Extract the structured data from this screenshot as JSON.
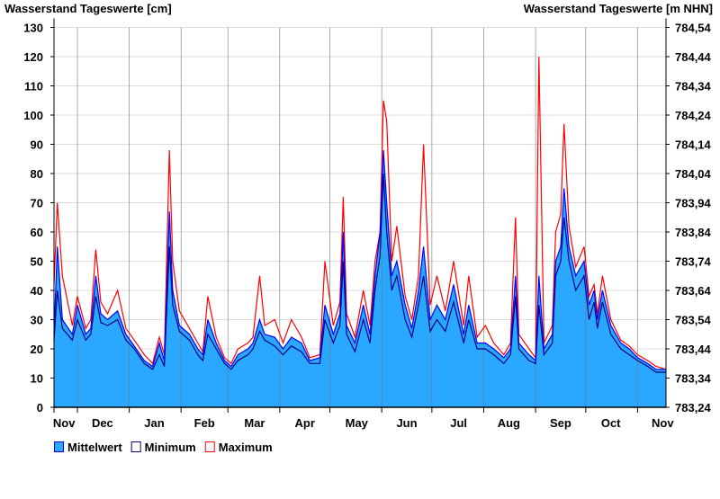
{
  "chart_data": {
    "type": "area",
    "title_left": "Wasserstand Tageswerte [cm]",
    "title_right": "Wasserstand Tageswerte [m NHN]",
    "ylim": [
      0,
      130
    ],
    "yticks": [
      0,
      10,
      20,
      30,
      40,
      50,
      60,
      70,
      80,
      90,
      100,
      110,
      120,
      130
    ],
    "yticks_right": [
      "783,24",
      "783,34",
      "783,44",
      "783,54",
      "783,64",
      "783,74",
      "783,84",
      "783,94",
      "784,04",
      "784,14",
      "784,24",
      "784,34",
      "784,44",
      "784,54"
    ],
    "xlim_days": [
      0,
      366
    ],
    "month_boundaries_days": [
      14,
      45,
      76,
      104,
      135,
      165,
      196,
      226,
      257,
      288,
      318,
      349
    ],
    "month_labels": [
      {
        "label": "Nov",
        "day": 6
      },
      {
        "label": "Dec",
        "day": 29
      },
      {
        "label": "Jan",
        "day": 60
      },
      {
        "label": "Feb",
        "day": 90
      },
      {
        "label": "Mar",
        "day": 120
      },
      {
        "label": "Apr",
        "day": 150
      },
      {
        "label": "May",
        "day": 181
      },
      {
        "label": "Jun",
        "day": 211
      },
      {
        "label": "Jul",
        "day": 242
      },
      {
        "label": "Aug",
        "day": 272
      },
      {
        "label": "Sep",
        "day": 303
      },
      {
        "label": "Oct",
        "day": 333
      },
      {
        "label": "Nov",
        "day": 364
      }
    ],
    "legend": [
      {
        "label": "Mittelwert",
        "color": "#2aa8ff",
        "border": "#0000ff"
      },
      {
        "label": "Minimum",
        "color": "#ffffff",
        "border": "#000080"
      },
      {
        "label": "Maximum",
        "color": "#ffffff",
        "border": "#ff0000"
      }
    ],
    "colors": {
      "fill": "#2aa8ff",
      "mean": "#0000ff",
      "min": "#000080",
      "max": "#ff0000",
      "grid": "#dddddd",
      "month_line": "#1f5f8a"
    },
    "series_columns": [
      "day",
      "min",
      "mean",
      "max"
    ],
    "points": [
      [
        0,
        23,
        25,
        42
      ],
      [
        2,
        40,
        55,
        70
      ],
      [
        5,
        27,
        30,
        45
      ],
      [
        11,
        23,
        25,
        28
      ],
      [
        14,
        30,
        35,
        38
      ],
      [
        19,
        23,
        25,
        27
      ],
      [
        22,
        25,
        27,
        30
      ],
      [
        25,
        38,
        45,
        54
      ],
      [
        28,
        29,
        32,
        36
      ],
      [
        32,
        28,
        30,
        32
      ],
      [
        38,
        30,
        33,
        40
      ],
      [
        43,
        23,
        25,
        27
      ],
      [
        48,
        20,
        21,
        23
      ],
      [
        54,
        15,
        16,
        18
      ],
      [
        59,
        13,
        14,
        15
      ],
      [
        63,
        18,
        22,
        24
      ],
      [
        66,
        14,
        16,
        18
      ],
      [
        69,
        55,
        67,
        88
      ],
      [
        71,
        35,
        40,
        50
      ],
      [
        75,
        26,
        28,
        33
      ],
      [
        81,
        23,
        25,
        27
      ],
      [
        86,
        18,
        20,
        22
      ],
      [
        89,
        16,
        18,
        19
      ],
      [
        92,
        25,
        30,
        38
      ],
      [
        97,
        20,
        22,
        24
      ],
      [
        102,
        15,
        16,
        17
      ],
      [
        106,
        13,
        14,
        15
      ],
      [
        110,
        16,
        18,
        20
      ],
      [
        116,
        18,
        20,
        22
      ],
      [
        119,
        20,
        22,
        24
      ],
      [
        123,
        26,
        30,
        45
      ],
      [
        126,
        23,
        25,
        28
      ],
      [
        132,
        21,
        24,
        30
      ],
      [
        137,
        18,
        20,
        22
      ],
      [
        142,
        21,
        24,
        30
      ],
      [
        148,
        19,
        22,
        24
      ],
      [
        153,
        15,
        16,
        17
      ],
      [
        159,
        15,
        17,
        18
      ],
      [
        162,
        30,
        35,
        50
      ],
      [
        167,
        22,
        25,
        28
      ],
      [
        171,
        28,
        32,
        36
      ],
      [
        173,
        50,
        60,
        72
      ],
      [
        175,
        25,
        28,
        32
      ],
      [
        180,
        19,
        22,
        24
      ],
      [
        185,
        30,
        35,
        40
      ],
      [
        189,
        22,
        25,
        28
      ],
      [
        192,
        40,
        45,
        50
      ],
      [
        195,
        52,
        60,
        60
      ],
      [
        197,
        80,
        88,
        105
      ],
      [
        199,
        60,
        70,
        98
      ],
      [
        202,
        40,
        45,
        50
      ],
      [
        205,
        45,
        50,
        62
      ],
      [
        210,
        30,
        35,
        38
      ],
      [
        214,
        24,
        27,
        30
      ],
      [
        218,
        35,
        40,
        45
      ],
      [
        221,
        45,
        55,
        90
      ],
      [
        225,
        26,
        30,
        35
      ],
      [
        229,
        30,
        35,
        45
      ],
      [
        234,
        26,
        30,
        33
      ],
      [
        239,
        36,
        42,
        50
      ],
      [
        245,
        22,
        25,
        28
      ],
      [
        248,
        30,
        35,
        45
      ],
      [
        253,
        20,
        22,
        24
      ],
      [
        258,
        20,
        22,
        28
      ],
      [
        263,
        18,
        20,
        22
      ],
      [
        269,
        15,
        17,
        18
      ],
      [
        273,
        18,
        20,
        22
      ],
      [
        276,
        38,
        45,
        65
      ],
      [
        278,
        20,
        22,
        25
      ],
      [
        284,
        16,
        18,
        20
      ],
      [
        288,
        15,
        16,
        17
      ],
      [
        290,
        35,
        45,
        120
      ],
      [
        293,
        18,
        20,
        22
      ],
      [
        298,
        22,
        25,
        28
      ],
      [
        300,
        45,
        50,
        60
      ],
      [
        303,
        50,
        55,
        66
      ],
      [
        305,
        65,
        75,
        97
      ],
      [
        308,
        50,
        55,
        62
      ],
      [
        312,
        40,
        45,
        48
      ],
      [
        317,
        45,
        50,
        55
      ],
      [
        320,
        30,
        35,
        38
      ],
      [
        323,
        36,
        40,
        42
      ],
      [
        325,
        27,
        30,
        32
      ],
      [
        328,
        36,
        40,
        45
      ],
      [
        333,
        25,
        28,
        30
      ],
      [
        339,
        20,
        22,
        23
      ],
      [
        344,
        18,
        20,
        21
      ],
      [
        349,
        16,
        17,
        18
      ],
      [
        355,
        14,
        15,
        16
      ],
      [
        360,
        12,
        13,
        14
      ],
      [
        366,
        12,
        13,
        13
      ]
    ]
  }
}
